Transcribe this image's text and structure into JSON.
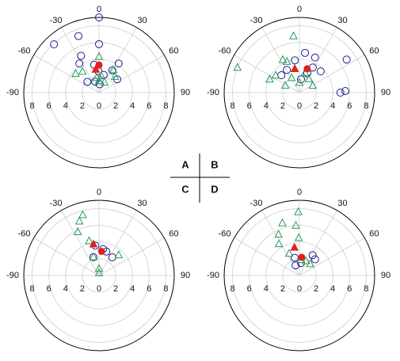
{
  "chart_data": [
    {
      "type": "polar-scatter",
      "label": "A",
      "rlim": [
        0,
        9
      ],
      "rticks": [
        0,
        2,
        4,
        6,
        8
      ],
      "thetaticks": [
        -90,
        -60,
        -30,
        0,
        30,
        60,
        90
      ],
      "series": [
        {
          "marker": "circle",
          "color": "#1c1c8f",
          "theta": [
            0,
            -43,
            -20,
            0,
            -34,
            -26,
            -10,
            -2,
            15,
            54,
            31,
            34,
            -47,
            -20,
            5
          ],
          "r": [
            9,
            7.9,
            7.2,
            5.8,
            4.2,
            4.9,
            3.4,
            2.6,
            2.2,
            2.7,
            3.1,
            4.2,
            1.9,
            1.4,
            1.0
          ]
        },
        {
          "marker": "triangle",
          "color": "#2a9a5a",
          "theta": [
            -51,
            -38,
            0,
            32,
            45,
            28,
            0,
            -9,
            8
          ],
          "r": [
            3.6,
            3.2,
            4.3,
            3.2,
            2.7,
            1.4,
            1.4,
            1.8,
            2.0
          ]
        },
        {
          "marker": "filled-circle",
          "color": "#e0201b",
          "theta": [
            0
          ],
          "r": [
            3.3
          ]
        },
        {
          "marker": "filled-triangle",
          "color": "#e0201b",
          "theta": [
            -8
          ],
          "r": [
            2.8
          ]
        }
      ]
    },
    {
      "type": "polar-scatter",
      "label": "B",
      "rlim": [
        0,
        9
      ],
      "rticks": [
        0,
        2,
        4,
        6,
        8
      ],
      "thetaticks": [
        -90,
        -60,
        -30,
        0,
        30,
        60,
        90
      ],
      "series": [
        {
          "marker": "circle",
          "color": "#1c1c8f",
          "theta": [
            55,
            90,
            88,
            8,
            24,
            -8,
            28,
            45,
            -29,
            22,
            -46,
            7
          ],
          "r": [
            6.9,
            4.9,
            5.5,
            4.8,
            4.6,
            3.9,
            3.4,
            3.6,
            3.1,
            2.5,
            3.0,
            1.6
          ]
        },
        {
          "marker": "triangle",
          "color": "#2a9a5a",
          "theta": [
            -6,
            -68,
            -66,
            -27,
            -22,
            -54,
            -28,
            0,
            35,
            62,
            -63,
            16
          ],
          "r": [
            6.8,
            8.0,
            3.9,
            4.4,
            4.0,
            3.5,
            2.0,
            1.2,
            2.0,
            1.8,
            1.9,
            2.5
          ]
        },
        {
          "marker": "filled-circle",
          "color": "#e0201b",
          "theta": [
            18
          ],
          "r": [
            3.0
          ]
        },
        {
          "marker": "filled-triangle",
          "color": "#e0201b",
          "theta": [
            -11
          ],
          "r": [
            2.9
          ]
        }
      ]
    },
    {
      "type": "polar-scatter",
      "label": "C",
      "rlim": [
        0,
        9
      ],
      "rticks": [
        0,
        2,
        4,
        6,
        8
      ],
      "thetaticks": [
        -90,
        -60,
        -30,
        0,
        30,
        60,
        90
      ],
      "series": [
        {
          "marker": "circle",
          "color": "#1c1c8f",
          "theta": [
            -7,
            9,
            36,
            -17,
            17
          ],
          "r": [
            3.6,
            3.2,
            2.7,
            2.3,
            3.0
          ]
        },
        {
          "marker": "triangle",
          "color": "#2a9a5a",
          "theta": [
            -15,
            -20,
            -26,
            44,
            -17,
            0,
            0,
            -16
          ],
          "r": [
            7.5,
            6.9,
            5.8,
            3.4,
            2.3,
            0.8,
            0.3,
            4.3
          ]
        },
        {
          "marker": "filled-circle",
          "color": "#e0201b",
          "theta": [
            6
          ],
          "r": [
            2.9
          ]
        },
        {
          "marker": "filled-triangle",
          "color": "#e0201b",
          "theta": [
            -10
          ],
          "r": [
            3.8
          ]
        }
      ]
    },
    {
      "type": "polar-scatter",
      "label": "D",
      "rlim": [
        0,
        9
      ],
      "rticks": [
        0,
        2,
        4,
        6,
        8
      ],
      "thetaticks": [
        -90,
        -60,
        -30,
        0,
        30,
        60,
        90
      ],
      "series": [
        {
          "marker": "circle",
          "color": "#1c1c8f",
          "theta": [
            -15,
            -21,
            33,
            44,
            7
          ],
          "r": [
            2.2,
            1.3,
            2.9,
            2.7,
            1.5
          ]
        },
        {
          "marker": "triangle",
          "color": "#2a9a5a",
          "theta": [
            -1,
            -18,
            -4,
            -27,
            -33,
            -1,
            -25,
            6,
            24,
            43
          ],
          "r": [
            7.6,
            6.6,
            6.0,
            5.5,
            4.5,
            4.5,
            2.9,
            1.9,
            1.9,
            1.9
          ]
        },
        {
          "marker": "filled-circle",
          "color": "#e0201b",
          "theta": [
            7
          ],
          "r": [
            2.2
          ]
        },
        {
          "marker": "filled-triangle",
          "color": "#e0201b",
          "theta": [
            -10
          ],
          "r": [
            3.4
          ]
        }
      ]
    }
  ]
}
